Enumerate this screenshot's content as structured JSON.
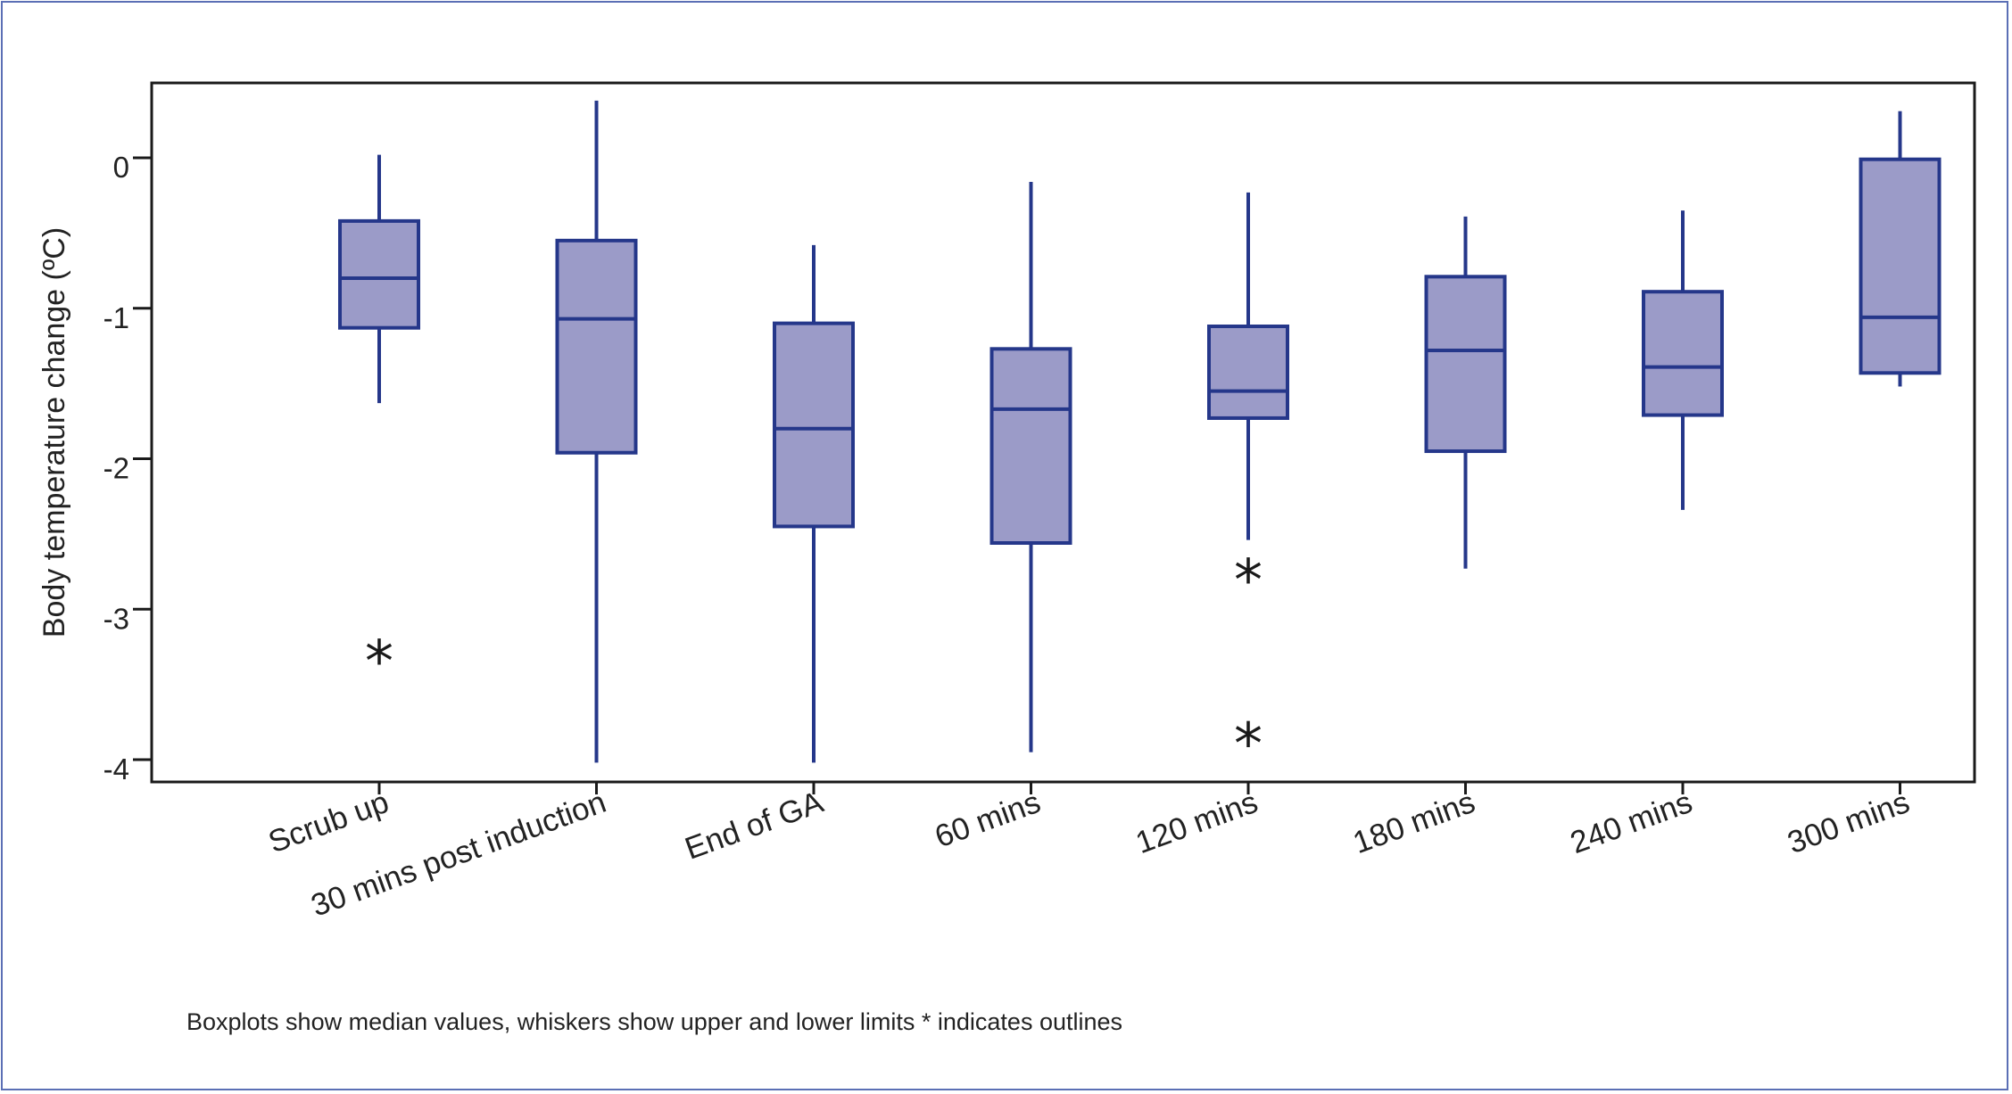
{
  "chart_data": {
    "type": "box",
    "ylabel": "Body temperature change (ºC)",
    "xlabel": "",
    "ylim": [
      -4.15,
      0.5
    ],
    "yticks": [
      0,
      -1,
      -2,
      -3,
      -4
    ],
    "categories": [
      "Scrub up",
      "30 mins post induction",
      "End of GA",
      "60 mins",
      "120 mins",
      "180 mins",
      "240 mins",
      "300 mins"
    ],
    "boxes": [
      {
        "category": "Scrub up",
        "whisker_low": -1.63,
        "q1": -1.13,
        "median": -0.8,
        "q3": -0.42,
        "whisker_high": 0.02,
        "outliers": [
          -3.3
        ]
      },
      {
        "category": "30 mins post induction",
        "whisker_low": -4.02,
        "q1": -1.96,
        "median": -1.07,
        "q3": -0.55,
        "whisker_high": 0.38,
        "outliers": []
      },
      {
        "category": "End of GA",
        "whisker_low": -4.02,
        "q1": -2.45,
        "median": -1.8,
        "q3": -1.1,
        "whisker_high": -0.58,
        "outliers": []
      },
      {
        "category": "60 mins",
        "whisker_low": -3.95,
        "q1": -2.56,
        "median": -1.67,
        "q3": -1.27,
        "whisker_high": -0.16,
        "outliers": []
      },
      {
        "category": "120 mins",
        "whisker_low": -2.54,
        "q1": -1.73,
        "median": -1.55,
        "q3": -1.12,
        "whisker_high": -0.23,
        "outliers": [
          -2.76,
          -3.85
        ]
      },
      {
        "category": "180 mins",
        "whisker_low": -2.73,
        "q1": -1.95,
        "median": -1.28,
        "q3": -0.79,
        "whisker_high": -0.39,
        "outliers": []
      },
      {
        "category": "240 mins",
        "whisker_low": -2.34,
        "q1": -1.71,
        "median": -1.39,
        "q3": -0.89,
        "whisker_high": -0.35,
        "outliers": []
      },
      {
        "category": "300 mins",
        "whisker_low": -1.52,
        "q1": -1.43,
        "median": -1.06,
        "q3": -0.01,
        "whisker_high": 0.31,
        "outliers": []
      }
    ],
    "outlier_marker": "*",
    "box_fill": "#9b9bc8",
    "box_stroke": "#25378a",
    "grid": false
  },
  "caption": "Boxplots show median values, whiskers show upper and lower limits * indicates outlines"
}
